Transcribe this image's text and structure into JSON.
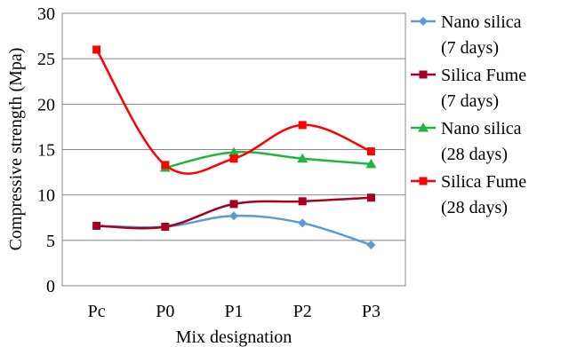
{
  "chart_data": {
    "type": "line",
    "title": "",
    "xlabel": "Mix designation",
    "ylabel": "Compressive strength (Mpa)",
    "categories": [
      "Pc",
      "P0",
      "P1",
      "P2",
      "P3"
    ],
    "ylim": [
      0,
      30
    ],
    "yticks": [
      0,
      5,
      10,
      15,
      20,
      25,
      30
    ],
    "grid": "horizontal",
    "legend_position": "right",
    "series": [
      {
        "legend_lines": [
          "Nano silica",
          "(7 days)"
        ],
        "color": "#5B9BD5",
        "marker": "diamond",
        "values": [
          6.6,
          6.5,
          7.7,
          6.9,
          4.5
        ]
      },
      {
        "legend_lines": [
          "Silica Fume",
          "(7 days)"
        ],
        "color": "#A50021",
        "marker": "square",
        "values": [
          6.6,
          6.5,
          9.0,
          9.3,
          9.7
        ]
      },
      {
        "legend_lines": [
          "Nano silica",
          "(28 days)"
        ],
        "color": "#1FB53E",
        "marker": "triangle",
        "values": [
          null,
          13.0,
          14.7,
          14.0,
          13.4
        ]
      },
      {
        "legend_lines": [
          "Silica Fume",
          "(28 days)"
        ],
        "color": "#FF0000",
        "marker": "square",
        "values": [
          26.0,
          13.3,
          14.0,
          17.7,
          14.8
        ]
      }
    ]
  }
}
